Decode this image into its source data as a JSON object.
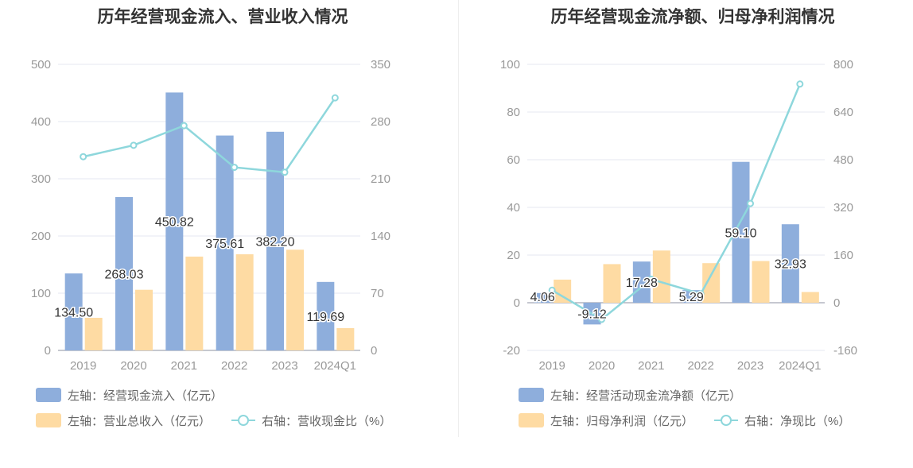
{
  "colors": {
    "bar1": "#8eaedc",
    "bar2": "#fedba3",
    "line": "#8ed7dc",
    "axis_text": "#999999",
    "grid": "#e4e7f2"
  },
  "chart_data": [
    {
      "type": "bar",
      "title": "历年经营现金流入、营业收入情况",
      "categories": [
        "2019",
        "2020",
        "2021",
        "2022",
        "2023",
        "2024Q1"
      ],
      "y_left_ticks": [
        "0",
        "100",
        "200",
        "300",
        "400",
        "500"
      ],
      "y_right_ticks": [
        "0",
        "70",
        "140",
        "210",
        "280",
        "350"
      ],
      "ylim_left": [
        0,
        500
      ],
      "ylim_right": [
        0,
        350
      ],
      "series": [
        {
          "name": "左轴：经营现金流入（亿元）",
          "kind": "bar",
          "axis": "left",
          "values": [
            134.5,
            268.03,
            450.82,
            375.61,
            382.2,
            119.69
          ],
          "labels": [
            "134.50",
            "268.03",
            "450.82",
            "375.61",
            "382.20",
            "119.69"
          ]
        },
        {
          "name": "左轴：营业总收入（亿元）",
          "kind": "bar",
          "axis": "left",
          "values": [
            57,
            106,
            164,
            168,
            176,
            39
          ]
        },
        {
          "name": "右轴：营收现金比（%）",
          "kind": "line",
          "axis": "right",
          "values": [
            237,
            251,
            275,
            224,
            218,
            309
          ]
        }
      ],
      "grid": true
    },
    {
      "type": "bar",
      "title": "历年经营现金流净额、归母净利润情况",
      "categories": [
        "2019",
        "2020",
        "2021",
        "2022",
        "2023",
        "2024Q1"
      ],
      "y_left_ticks": [
        "-20",
        "0",
        "20",
        "40",
        "60",
        "80",
        "100"
      ],
      "y_right_ticks": [
        "-160",
        "0",
        "160",
        "320",
        "480",
        "640",
        "800"
      ],
      "ylim_left": [
        -20,
        100
      ],
      "ylim_right": [
        -160,
        800
      ],
      "series": [
        {
          "name": "左轴：经营活动现金流净额（亿元）",
          "kind": "bar",
          "axis": "left",
          "values": [
            4.06,
            -9.12,
            17.28,
            5.29,
            59.1,
            32.93
          ],
          "labels": [
            "4.06",
            "-9.12",
            "17.28",
            "5.29",
            "59.10",
            "32.93"
          ]
        },
        {
          "name": "左轴：归母净利润（亿元）",
          "kind": "bar",
          "axis": "left",
          "values": [
            9.7,
            16.2,
            21.9,
            16.6,
            17.5,
            4.5
          ]
        },
        {
          "name": "右轴：净现比（%）",
          "kind": "line",
          "axis": "right",
          "values": [
            42,
            -56,
            79,
            30,
            333,
            734
          ]
        }
      ],
      "grid": true
    }
  ]
}
